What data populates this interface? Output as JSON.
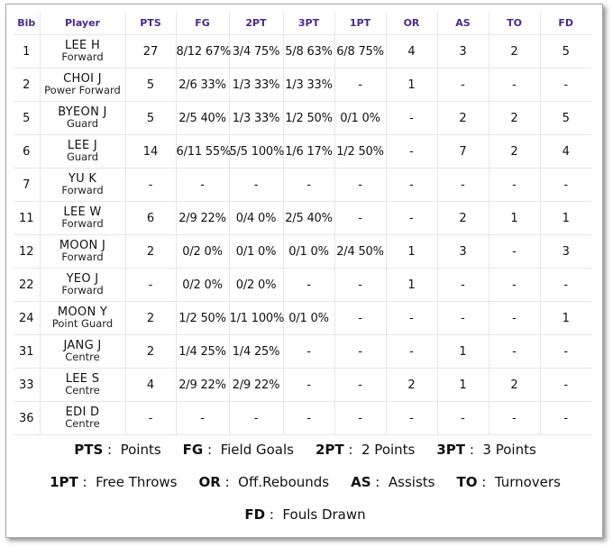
{
  "headers": [
    "Bib",
    "Player",
    "PTS",
    "FG",
    "2PT",
    "3PT",
    "1PT",
    "OR",
    "AS",
    "TO",
    "FD"
  ],
  "rows": [
    {
      "bib": "1",
      "name": "LEE H",
      "pos": "Forward",
      "pts": "27",
      "fg": "8/12 67%",
      "p2": "3/4 75%",
      "p3": "5/8 63%",
      "p1": "6/8 75%",
      "or": "4",
      "as": "3",
      "to": "2",
      "fd": "5"
    },
    {
      "bib": "2",
      "name": "CHOI J",
      "pos": "Power Forward",
      "pts": "5",
      "fg": "2/6 33%",
      "p2": "1/3 33%",
      "p3": "1/3 33%",
      "p1": "-",
      "or": "1",
      "as": "-",
      "to": "-",
      "fd": "-"
    },
    {
      "bib": "5",
      "name": "BYEON J",
      "pos": "Guard",
      "pts": "5",
      "fg": "2/5 40%",
      "p2": "1/3 33%",
      "p3": "1/2 50%",
      "p1": "0/1 0%",
      "or": "-",
      "as": "2",
      "to": "2",
      "fd": "5"
    },
    {
      "bib": "6",
      "name": "LEE J",
      "pos": "Guard",
      "pts": "14",
      "fg": "6/11 55%",
      "p2": "5/5 100%",
      "p3": "1/6 17%",
      "p1": "1/2 50%",
      "or": "-",
      "as": "7",
      "to": "2",
      "fd": "4"
    },
    {
      "bib": "7",
      "name": "YU K",
      "pos": "Forward",
      "pts": "-",
      "fg": "-",
      "p2": "-",
      "p3": "-",
      "p1": "-",
      "or": "-",
      "as": "-",
      "to": "-",
      "fd": "-"
    },
    {
      "bib": "11",
      "name": "LEE W",
      "pos": "Forward",
      "pts": "6",
      "fg": "2/9 22%",
      "p2": "0/4 0%",
      "p3": "2/5 40%",
      "p1": "-",
      "or": "-",
      "as": "2",
      "to": "1",
      "fd": "1"
    },
    {
      "bib": "12",
      "name": "MOON J",
      "pos": "Forward",
      "pts": "2",
      "fg": "0/2 0%",
      "p2": "0/1 0%",
      "p3": "0/1 0%",
      "p1": "2/4 50%",
      "or": "1",
      "as": "3",
      "to": "-",
      "fd": "3"
    },
    {
      "bib": "22",
      "name": "YEO J",
      "pos": "Forward",
      "pts": "-",
      "fg": "0/2 0%",
      "p2": "0/2 0%",
      "p3": "-",
      "p1": "-",
      "or": "1",
      "as": "-",
      "to": "-",
      "fd": "-"
    },
    {
      "bib": "24",
      "name": "MOON Y",
      "pos": "Point Guard",
      "pts": "2",
      "fg": "1/2 50%",
      "p2": "1/1 100%",
      "p3": "0/1 0%",
      "p1": "-",
      "or": "-",
      "as": "-",
      "to": "-",
      "fd": "1"
    },
    {
      "bib": "31",
      "name": "JANG J",
      "pos": "Centre",
      "pts": "2",
      "fg": "1/4 25%",
      "p2": "1/4 25%",
      "p3": "-",
      "p1": "-",
      "or": "-",
      "as": "1",
      "to": "-",
      "fd": "-"
    },
    {
      "bib": "33",
      "name": "LEE S",
      "pos": "Centre",
      "pts": "4",
      "fg": "2/9 22%",
      "p2": "2/9 22%",
      "p3": "-",
      "p1": "-",
      "or": "2",
      "as": "1",
      "to": "2",
      "fd": "-"
    },
    {
      "bib": "36",
      "name": "EDI D",
      "pos": "Centre",
      "pts": "-",
      "fg": "-",
      "p2": "-",
      "p3": "-",
      "p1": "-",
      "or": "-",
      "as": "-",
      "to": "-",
      "fd": "-"
    }
  ],
  "legend": [
    [
      {
        "k": "PTS",
        "v": "Points"
      },
      {
        "k": "FG",
        "v": "Field Goals"
      },
      {
        "k": "2PT",
        "v": "2 Points"
      },
      {
        "k": "3PT",
        "v": "3 Points"
      }
    ],
    [
      {
        "k": "1PT",
        "v": "Free Throws"
      },
      {
        "k": "OR",
        "v": "Off.Rebounds"
      },
      {
        "k": "AS",
        "v": "Assists"
      },
      {
        "k": "TO",
        "v": "Turnovers"
      }
    ],
    [
      {
        "k": "FD",
        "v": "Fouls Drawn"
      }
    ]
  ],
  "colors": {
    "header_text": "#4b2a8c",
    "grid": "#e6e6e6"
  }
}
